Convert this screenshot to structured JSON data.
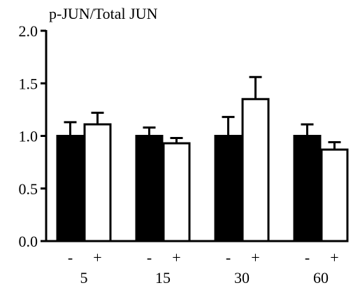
{
  "chart_data": {
    "type": "bar",
    "title": "",
    "ylabel": "p-JUN/Total JUN",
    "xlabel": "",
    "ylim": [
      0,
      2.0
    ],
    "yticks": [
      "0.0",
      "0.5",
      "1.0",
      "1.5",
      "2.0"
    ],
    "categories": [
      "5",
      "15",
      "30",
      "60"
    ],
    "sub_labels": [
      "-",
      "+"
    ],
    "series": [
      {
        "label": "-",
        "color": "#000000",
        "values": [
          1.0,
          1.0,
          1.0,
          1.0
        ],
        "errors": [
          0.13,
          0.08,
          0.18,
          0.11
        ]
      },
      {
        "label": "+",
        "color": "#ffffff",
        "values": [
          1.11,
          0.93,
          1.35,
          0.87
        ],
        "errors": [
          0.11,
          0.05,
          0.21,
          0.07
        ]
      }
    ],
    "grid": false
  }
}
